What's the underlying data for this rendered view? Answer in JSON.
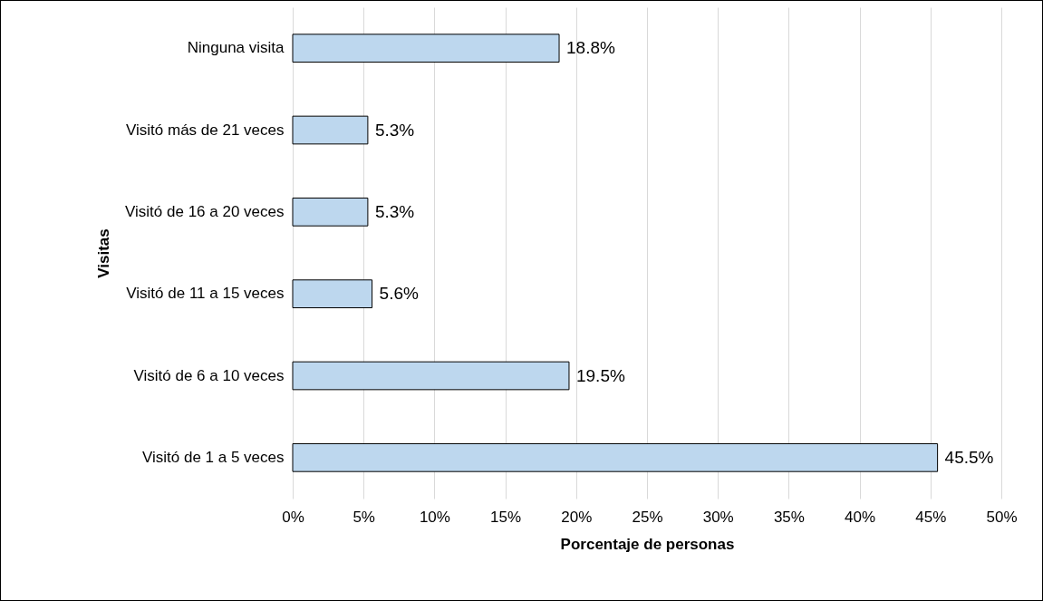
{
  "chart_data": {
    "type": "bar",
    "orientation": "horizontal",
    "xlabel": "Porcentaje de personas",
    "ylabel": "Visitas",
    "categories": [
      "Ninguna visita",
      "Visitó más de 21 veces",
      "Visitó de 16 a 20 veces",
      "Visitó de 11 a 15 veces",
      "Visitó de 6 a 10 veces",
      "Visitó de 1 a 5 veces"
    ],
    "values": [
      18.8,
      5.3,
      5.3,
      5.6,
      19.5,
      45.5
    ],
    "value_labels": [
      "18.8%",
      "5.3%",
      "5.3%",
      "5.6%",
      "19.5%",
      "45.5%"
    ],
    "color": "#bdd7ee",
    "xlim": [
      0,
      50
    ],
    "xticks": [
      {
        "value": 0,
        "label": "0%"
      },
      {
        "value": 5,
        "label": "5%"
      },
      {
        "value": 10,
        "label": "10%"
      },
      {
        "value": 15,
        "label": "15%"
      },
      {
        "value": 20,
        "label": "20%"
      },
      {
        "value": 25,
        "label": "25%"
      },
      {
        "value": 30,
        "label": "30%"
      },
      {
        "value": 35,
        "label": "35%"
      },
      {
        "value": 40,
        "label": "40%"
      },
      {
        "value": 45,
        "label": "45%"
      },
      {
        "value": 50,
        "label": "50%"
      }
    ],
    "grid": "x"
  }
}
